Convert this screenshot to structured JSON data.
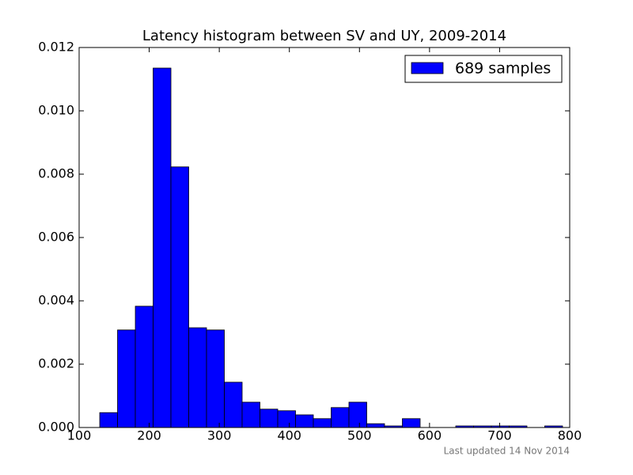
{
  "chart_data": {
    "type": "histogram",
    "title": "Latency histogram between SV and UY, 2009-2014",
    "bins": [
      129.4,
      154.8,
      180.2,
      205.6,
      231.0,
      256.4,
      281.8,
      307.2,
      332.6,
      358.0,
      383.4,
      408.8,
      434.2,
      459.6,
      485.0,
      510.4,
      535.8,
      561.2,
      586.6,
      612.0,
      637.4,
      662.8,
      688.2,
      713.6,
      739.0,
      764.4,
      789.8
    ],
    "series": [
      {
        "name": "689 samples",
        "color": "#0000ff",
        "values": [
          0.00047,
          0.00308,
          0.00383,
          0.01135,
          0.00823,
          0.00315,
          0.00308,
          0.00143,
          0.0008,
          0.00058,
          0.00053,
          0.0004,
          0.00028,
          0.00063,
          0.0008,
          0.00012,
          5e-05,
          0.00028,
          0,
          0,
          5e-05,
          5e-05,
          5e-05,
          5e-05,
          0,
          5e-05
        ]
      }
    ],
    "xlim": [
      100,
      800
    ],
    "xticks": [
      100,
      200,
      300,
      400,
      500,
      600,
      700,
      800
    ],
    "ylim": [
      0,
      0.012
    ],
    "yticks": [
      {
        "value": 0,
        "label": "0.000"
      },
      {
        "value": 0.002,
        "label": "0.002"
      },
      {
        "value": 0.004,
        "label": "0.004"
      },
      {
        "value": 0.006,
        "label": "0.006"
      },
      {
        "value": 0.008,
        "label": "0.008"
      },
      {
        "value": 0.01,
        "label": "0.010"
      },
      {
        "value": 0.012,
        "label": "0.012"
      }
    ],
    "legend": "upper right",
    "annotation": "Last updated 14 Nov 2014"
  }
}
